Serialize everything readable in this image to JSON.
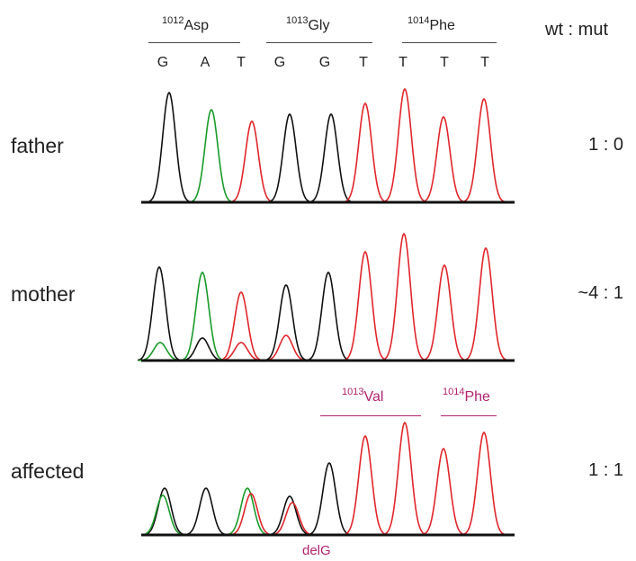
{
  "header": {
    "codons": [
      {
        "num": "1012",
        "aa": "Asp"
      },
      {
        "num": "1013",
        "aa": "Gly"
      },
      {
        "num": "1014",
        "aa": "Phe"
      }
    ],
    "bases": [
      "G",
      "A",
      "T",
      "G",
      "G",
      "T",
      "T",
      "T",
      "T"
    ],
    "ratio_header": "wt : mut"
  },
  "rows": [
    {
      "label": "father",
      "ratio": "1 : 0"
    },
    {
      "label": "mother",
      "ratio": "~4 : 1"
    },
    {
      "label": "affected",
      "ratio": "1 : 1"
    }
  ],
  "mutation": {
    "codons": [
      {
        "num": "1013",
        "aa": "Val"
      },
      {
        "num": "1014",
        "aa": "Phe"
      }
    ],
    "deletion": "delG"
  },
  "colors": {
    "G": "#111111",
    "A": "#1a9a2a",
    "T": "#e0262b",
    "C": "#1b3fd1",
    "mutation": "#b0226e"
  }
}
